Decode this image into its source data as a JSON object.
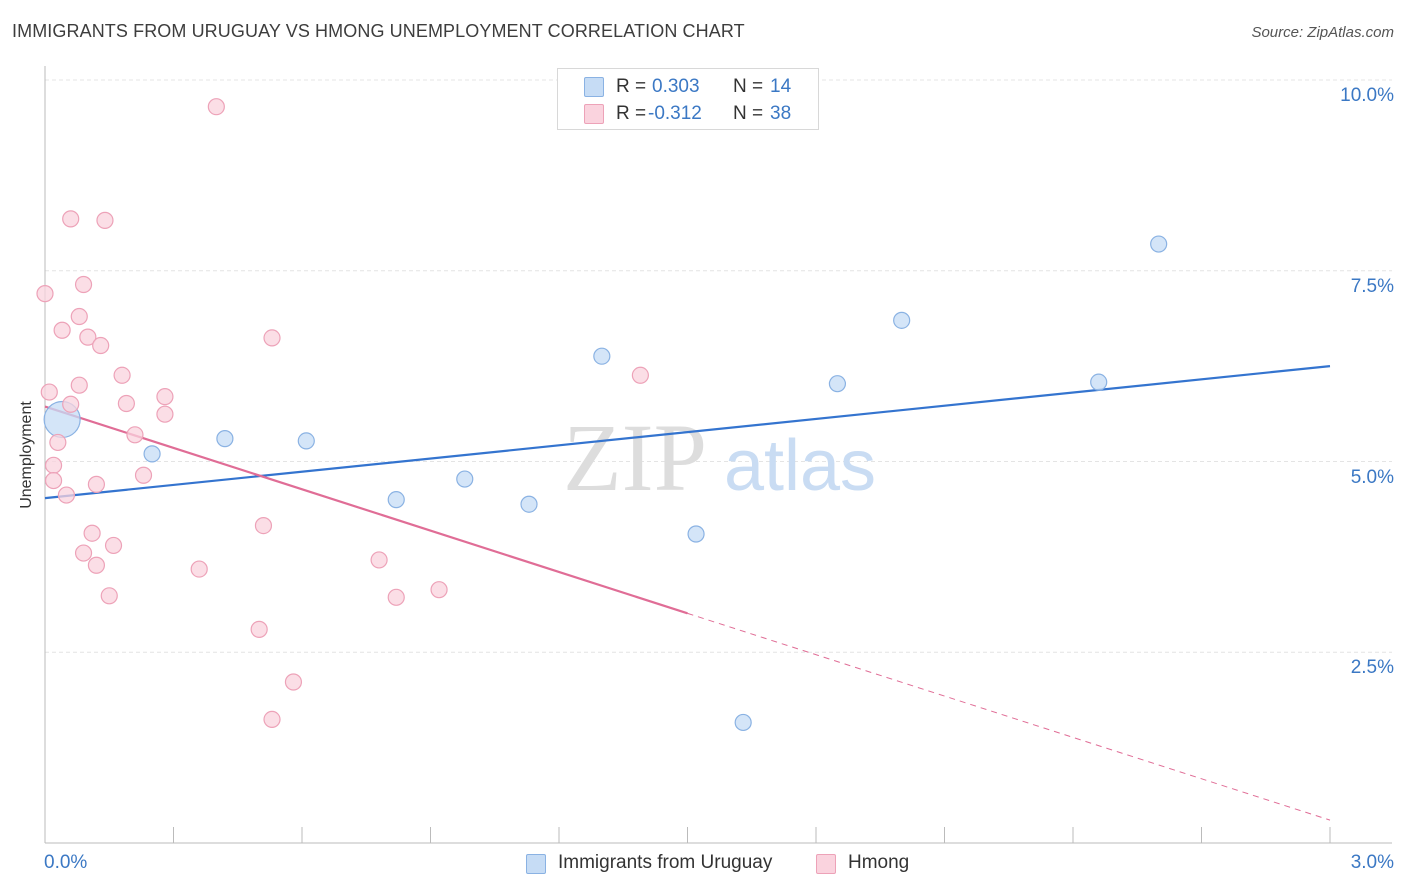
{
  "header": {
    "title": "IMMIGRANTS FROM URUGUAY VS HMONG UNEMPLOYMENT CORRELATION CHART",
    "source": "Source: ZipAtlas.com"
  },
  "watermark": {
    "zip": "ZIP",
    "atlas": "atlas"
  },
  "legend_top": {
    "rows": [
      {
        "r_label": "R = ",
        "r_value": "0.303",
        "n_label": "N = ",
        "n_value": "14",
        "color": "#a8c8f0"
      },
      {
        "r_label": "R = ",
        "r_value": "-0.312",
        "n_label": "N = ",
        "n_value": "38",
        "color": "#f6b8c8"
      }
    ]
  },
  "colors": {
    "blue_fill": "#c6dcf5",
    "blue_stroke": "#8ab2e3",
    "blue_line": "#3474cf",
    "pink_fill": "#fad3de",
    "pink_stroke": "#eda2b8",
    "pink_line": "#e06d96",
    "tick_text": "#3b78c4",
    "grid": "#e4e4e4"
  },
  "chart_data": {
    "type": "scatter",
    "title": "IMMIGRANTS FROM URUGUAY VS HMONG UNEMPLOYMENT CORRELATION CHART",
    "xlabel": "",
    "ylabel": "Unemployment",
    "xlim": [
      0.0,
      3.0
    ],
    "ylim": [
      0.0,
      10.0
    ],
    "x_tick_labels": [
      "0.0%",
      "3.0%"
    ],
    "y_ticks": [
      2.5,
      5.0,
      7.5,
      10.0
    ],
    "y_tick_labels": [
      "2.5%",
      "5.0%",
      "7.5%",
      "10.0%"
    ],
    "grid": true,
    "legend_position": "bottom",
    "series": [
      {
        "name": "Immigrants from Uruguay",
        "points": [
          {
            "x": 0.04,
            "y": 5.55,
            "big": true
          },
          {
            "x": 0.25,
            "y": 5.1
          },
          {
            "x": 0.42,
            "y": 5.3
          },
          {
            "x": 0.61,
            "y": 5.27
          },
          {
            "x": 0.82,
            "y": 4.5
          },
          {
            "x": 0.98,
            "y": 4.77
          },
          {
            "x": 1.13,
            "y": 4.44
          },
          {
            "x": 1.3,
            "y": 6.38
          },
          {
            "x": 1.52,
            "y": 4.05
          },
          {
            "x": 1.63,
            "y": 1.58
          },
          {
            "x": 1.85,
            "y": 6.02
          },
          {
            "x": 2.0,
            "y": 6.85
          },
          {
            "x": 2.46,
            "y": 6.04
          },
          {
            "x": 2.6,
            "y": 7.85
          }
        ],
        "trend": {
          "x0": 0.0,
          "y0": 4.52,
          "x1": 3.0,
          "y1": 6.25,
          "dashed_from": null
        }
      },
      {
        "name": "Hmong",
        "points": [
          {
            "x": 0.0,
            "y": 7.2
          },
          {
            "x": 0.01,
            "y": 5.91
          },
          {
            "x": 0.02,
            "y": 4.95
          },
          {
            "x": 0.02,
            "y": 4.75
          },
          {
            "x": 0.03,
            "y": 5.25
          },
          {
            "x": 0.04,
            "y": 6.72
          },
          {
            "x": 0.05,
            "y": 4.56
          },
          {
            "x": 0.06,
            "y": 8.18
          },
          {
            "x": 0.06,
            "y": 5.75
          },
          {
            "x": 0.08,
            "y": 6.0
          },
          {
            "x": 0.08,
            "y": 6.9
          },
          {
            "x": 0.09,
            "y": 3.8
          },
          {
            "x": 0.09,
            "y": 7.32
          },
          {
            "x": 0.1,
            "y": 6.63
          },
          {
            "x": 0.11,
            "y": 4.06
          },
          {
            "x": 0.12,
            "y": 3.64
          },
          {
            "x": 0.12,
            "y": 4.7
          },
          {
            "x": 0.13,
            "y": 6.52
          },
          {
            "x": 0.14,
            "y": 8.16
          },
          {
            "x": 0.15,
            "y": 3.24
          },
          {
            "x": 0.16,
            "y": 3.9
          },
          {
            "x": 0.18,
            "y": 6.13
          },
          {
            "x": 0.19,
            "y": 5.76
          },
          {
            "x": 0.21,
            "y": 5.35
          },
          {
            "x": 0.23,
            "y": 4.82
          },
          {
            "x": 0.28,
            "y": 5.85
          },
          {
            "x": 0.28,
            "y": 5.62
          },
          {
            "x": 0.36,
            "y": 3.59
          },
          {
            "x": 0.4,
            "y": 9.65
          },
          {
            "x": 0.5,
            "y": 2.8
          },
          {
            "x": 0.51,
            "y": 4.16
          },
          {
            "x": 0.53,
            "y": 6.62
          },
          {
            "x": 0.53,
            "y": 1.62
          },
          {
            "x": 0.58,
            "y": 2.11
          },
          {
            "x": 0.78,
            "y": 3.71
          },
          {
            "x": 0.82,
            "y": 3.22
          },
          {
            "x": 0.92,
            "y": 3.32
          },
          {
            "x": 1.39,
            "y": 6.13
          }
        ],
        "trend": {
          "x0": 0.0,
          "y0": 5.72,
          "x1": 3.0,
          "y1": 0.3,
          "dashed_from": 1.5
        }
      }
    ]
  },
  "bottom_legend": {
    "items": [
      {
        "label": "Immigrants from Uruguay",
        "color": "#a8c8f0"
      },
      {
        "label": "Hmong",
        "color": "#f6b8c8"
      }
    ]
  }
}
